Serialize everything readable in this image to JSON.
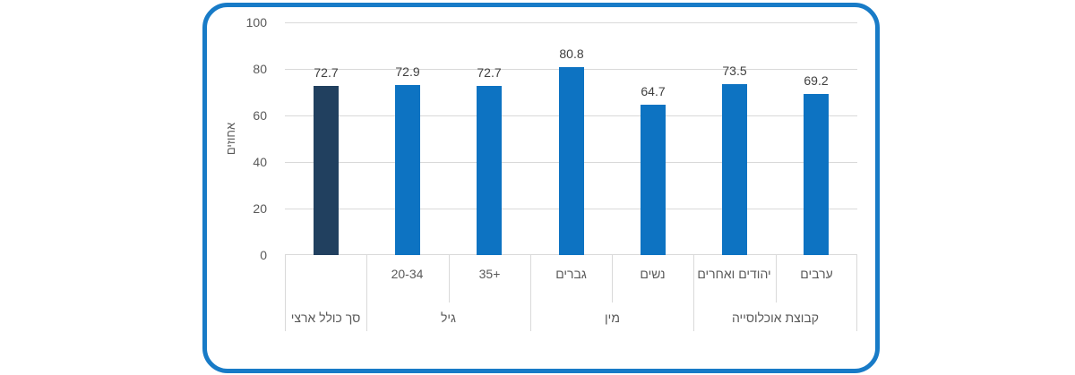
{
  "chart_data": {
    "type": "bar",
    "title": "",
    "ylabel": "אחוזים",
    "ylim": [
      0,
      100
    ],
    "yticks": [
      0,
      20,
      40,
      60,
      80,
      100
    ],
    "grid": true,
    "legend": false,
    "categories": [
      "סך כולל ארצי",
      "20-34",
      "35+",
      "גברים",
      "נשים",
      "יהודים ואחרים",
      "ערבים"
    ],
    "sub_labels": [
      "",
      "20-34",
      "+35",
      "גברים",
      "נשים",
      "יהודים ואחרים",
      "ערבים"
    ],
    "values": [
      72.7,
      72.9,
      72.7,
      80.8,
      64.7,
      73.5,
      69.2
    ],
    "value_labels": [
      "72.7",
      "72.9",
      "72.7",
      "80.8",
      "64.7",
      "73.5",
      "69.2"
    ],
    "groups": [
      {
        "label": "סך כולל ארצי",
        "span": 1
      },
      {
        "label": "גיל",
        "span": 2
      },
      {
        "label": "מין",
        "span": 2
      },
      {
        "label": "קבוצת אוכלוסייה",
        "span": 2
      }
    ],
    "bar_colors": [
      "#21405f",
      "#0d73c2",
      "#0d73c2",
      "#0d73c2",
      "#0d73c2",
      "#0d73c2",
      "#0d73c2"
    ],
    "colors": {
      "frame_border": "#187bc7",
      "gridline": "#d9d9d9",
      "axis_text": "#595959",
      "value_text": "#404040",
      "bar_default": "#0d73c2",
      "bar_highlight": "#21405f"
    }
  }
}
